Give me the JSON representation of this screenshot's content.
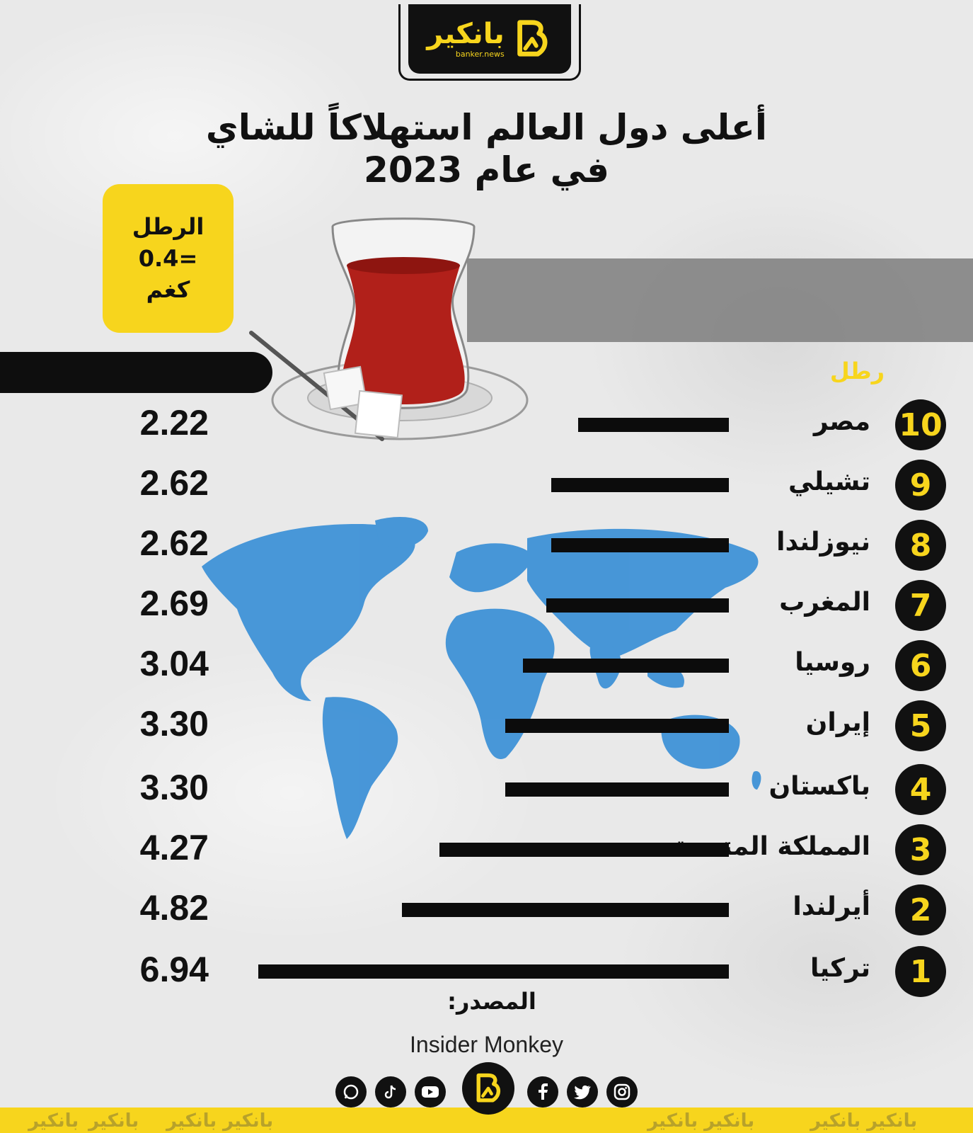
{
  "brand": {
    "name": "بانكير",
    "site": "banker.news",
    "colors": {
      "yellow": "#f7d51d",
      "black": "#111111",
      "map_blue": "#3a8fd6"
    }
  },
  "title": {
    "line1": "أعلى دول العالم استهلاكاً للشاي",
    "line2": "في عام 2023"
  },
  "unit_note": {
    "line1": "الرطل",
    "line2": "=0.4",
    "line3": "كغم"
  },
  "unit_label": "رطل",
  "chart_data": {
    "type": "bar",
    "orientation": "horizontal",
    "categories": [
      "مصر",
      "تشيلي",
      "نيوزلندا",
      "المغرب",
      "روسيا",
      "إيران",
      "باكستان",
      "المملكة المتحدة",
      "أيرلندا",
      "تركيا"
    ],
    "ranks": [
      "10",
      "9",
      "8",
      "7",
      "6",
      "5",
      "4",
      "3",
      "2",
      "1"
    ],
    "values": [
      2.22,
      2.62,
      2.62,
      2.69,
      3.04,
      3.3,
      3.3,
      4.27,
      4.82,
      6.94
    ],
    "value_labels": [
      "2.22",
      "2.62",
      "2.62",
      "2.69",
      "3.04",
      "3.30",
      "3.30",
      "4.27",
      "4.82",
      "6.94"
    ],
    "xlim": [
      0,
      6.94
    ],
    "grid": false,
    "legend": "none"
  },
  "source": {
    "label": "المصدر:",
    "name": "Insider Monkey"
  },
  "social": {
    "icons": [
      "instagram-icon",
      "twitter-icon",
      "facebook-icon",
      "youtube-icon",
      "tiktok-icon",
      "whatsapp-icon"
    ]
  }
}
